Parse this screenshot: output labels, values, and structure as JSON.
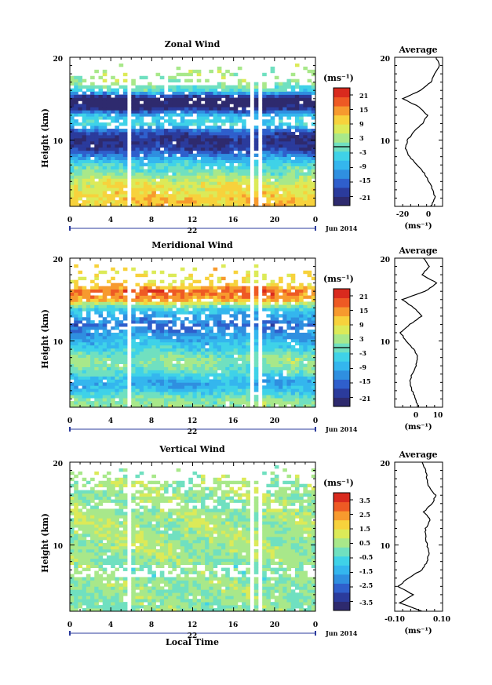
{
  "panels": [
    {
      "title": "Zonal Wind",
      "ylabel": "Height (km)",
      "yticks": [
        "20",
        "10"
      ],
      "xticks": [
        "0",
        "4",
        "8",
        "12",
        "16",
        "20",
        "0"
      ],
      "date_center": "22",
      "date_right": "Jun 2014",
      "xlabel": "",
      "unit_label": "(ms⁻¹)",
      "cbar_ticks": [
        "21",
        "15",
        "9",
        "3",
        "-3",
        "-9",
        "-15",
        "-21"
      ],
      "avg_title": "Average",
      "avg_xticks": [
        "-20",
        "0"
      ],
      "avg_xlabel": "(ms⁻¹)",
      "avg_yticks": [
        "20",
        "10"
      ]
    },
    {
      "title": "Meridional Wind",
      "ylabel": "Height (km)",
      "yticks": [
        "20",
        "10"
      ],
      "xticks": [
        "0",
        "4",
        "8",
        "12",
        "16",
        "20",
        "0"
      ],
      "date_center": "22",
      "date_right": "Jun 2014",
      "xlabel": "",
      "unit_label": "(ms⁻¹)",
      "cbar_ticks": [
        "21",
        "15",
        "9",
        "3",
        "-3",
        "-9",
        "-15",
        "-21"
      ],
      "avg_title": "Average",
      "avg_xticks": [
        "0",
        "10"
      ],
      "avg_xlabel": "(ms⁻¹)",
      "avg_yticks": [
        "20",
        "10"
      ]
    },
    {
      "title": "Vertical Wind",
      "ylabel": "Height (km)",
      "yticks": [
        "20",
        "10"
      ],
      "xticks": [
        "0",
        "4",
        "8",
        "12",
        "16",
        "20",
        "0"
      ],
      "date_center": "22",
      "date_right": "Jun 2014",
      "xlabel": "Local Time",
      "unit_label": "(ms⁻¹)",
      "cbar_ticks": [
        "3.5",
        "2.5",
        "1.5",
        "0.5",
        "-0.5",
        "-1.5",
        "-2.5",
        "-3.5"
      ],
      "avg_title": "Average",
      "avg_xticks": [
        "-0.10",
        "0.10"
      ],
      "avg_xlabel": "(ms⁻¹)",
      "avg_yticks": [
        "20",
        "10"
      ]
    }
  ],
  "colormap": [
    "#2e2a6e",
    "#2b3b9c",
    "#2f5fcc",
    "#2f8fe0",
    "#34b6ee",
    "#3fd2e8",
    "#70e0c0",
    "#a8e88a",
    "#dcea58",
    "#f7d23c",
    "#f79a2e",
    "#ee5a24",
    "#d92a1e"
  ],
  "chart_data": [
    {
      "type": "heatmap",
      "title": "Zonal Wind",
      "ylabel": "Height (km)",
      "x_axis": "Local time (h), 22 Jun 2014",
      "xlim": [
        0,
        24
      ],
      "ylim": [
        2,
        20
      ],
      "clim": [
        -21,
        21
      ],
      "profile_by_height": {
        "heights": [
          3,
          4,
          5,
          6,
          7,
          8,
          9,
          10,
          11,
          12,
          13,
          14,
          15,
          16,
          17
        ],
        "values": [
          10,
          8,
          6,
          1,
          -2,
          -9,
          -16,
          -18,
          -14,
          -2,
          -6,
          -20,
          -22,
          -2,
          3
        ]
      },
      "data_gaps_hours": [
        [
          5.5,
          6.2
        ],
        [
          17.6,
          18.0
        ],
        [
          18.3,
          18.6
        ]
      ],
      "average_profile": {
        "title": "Average",
        "xlim": [
          -30,
          15
        ],
        "heights": [
          2,
          3,
          4,
          5,
          6,
          7,
          8,
          9,
          10,
          11,
          12,
          13,
          14,
          15,
          16,
          17,
          18,
          19,
          20
        ],
        "values": [
          4,
          8,
          6,
          2,
          -2,
          -9,
          -16,
          -20,
          -18,
          -12,
          -4,
          1,
          -7,
          -22,
          -6,
          4,
          7,
          12,
          9
        ]
      }
    },
    {
      "type": "heatmap",
      "title": "Meridional Wind",
      "ylabel": "Height (km)",
      "x_axis": "Local time (h), 22 Jun 2014",
      "xlim": [
        0,
        24
      ],
      "ylim": [
        2,
        20
      ],
      "clim": [
        -21,
        21
      ],
      "profile_by_height": {
        "heights": [
          3,
          4,
          5,
          6,
          7,
          8,
          9,
          10,
          11,
          12,
          13,
          14,
          15,
          16,
          17
        ],
        "values": [
          2,
          -4,
          -8,
          -2,
          1,
          2,
          -3,
          -6,
          -9,
          -12,
          -8,
          -3,
          12,
          16,
          8
        ]
      },
      "data_gaps_hours": [
        [
          5.5,
          6.2
        ],
        [
          17.6,
          18.0
        ],
        [
          18.3,
          18.6
        ]
      ],
      "average_profile": {
        "title": "Average",
        "xlim": [
          -10,
          15
        ],
        "heights": [
          2,
          3,
          4,
          5,
          6,
          7,
          8,
          9,
          10,
          11,
          12,
          13,
          14,
          15,
          16,
          17,
          18,
          19,
          20
        ],
        "values": [
          2,
          1,
          -1,
          -2,
          -1,
          1,
          2,
          0,
          -4,
          -7,
          -2,
          4,
          0,
          -6,
          6,
          12,
          4,
          8,
          5
        ]
      }
    },
    {
      "type": "heatmap",
      "title": "Vertical Wind",
      "ylabel": "Height (km)",
      "xlabel": "Local Time",
      "x_axis": "Local time (h), 22 Jun 2014",
      "xlim": [
        0,
        24
      ],
      "ylim": [
        2,
        20
      ],
      "clim": [
        -3.5,
        3.5
      ],
      "profile_by_height": {
        "heights": [
          3,
          5,
          7,
          9,
          11,
          13,
          15,
          17,
          19
        ],
        "values": [
          0.3,
          0.4,
          0.2,
          0.5,
          0.6,
          0.5,
          0.4,
          0.6,
          0.4
        ]
      },
      "data_gaps_hours": [
        [
          5.5,
          6.2
        ],
        [
          17.6,
          18.0
        ],
        [
          18.3,
          18.6
        ]
      ],
      "average_profile": {
        "title": "Average",
        "xlim": [
          -0.16,
          0.12
        ],
        "heights": [
          2,
          3,
          4,
          5,
          6,
          7,
          8,
          9,
          10,
          11,
          12,
          13,
          14,
          15,
          16,
          17,
          18,
          19,
          20
        ],
        "values": [
          0.0,
          -0.13,
          -0.05,
          -0.14,
          -0.08,
          0.0,
          0.03,
          0.04,
          0.03,
          0.02,
          0.02,
          0.05,
          0.01,
          0.06,
          0.08,
          0.04,
          0.03,
          0.02,
          0.0
        ]
      }
    }
  ]
}
